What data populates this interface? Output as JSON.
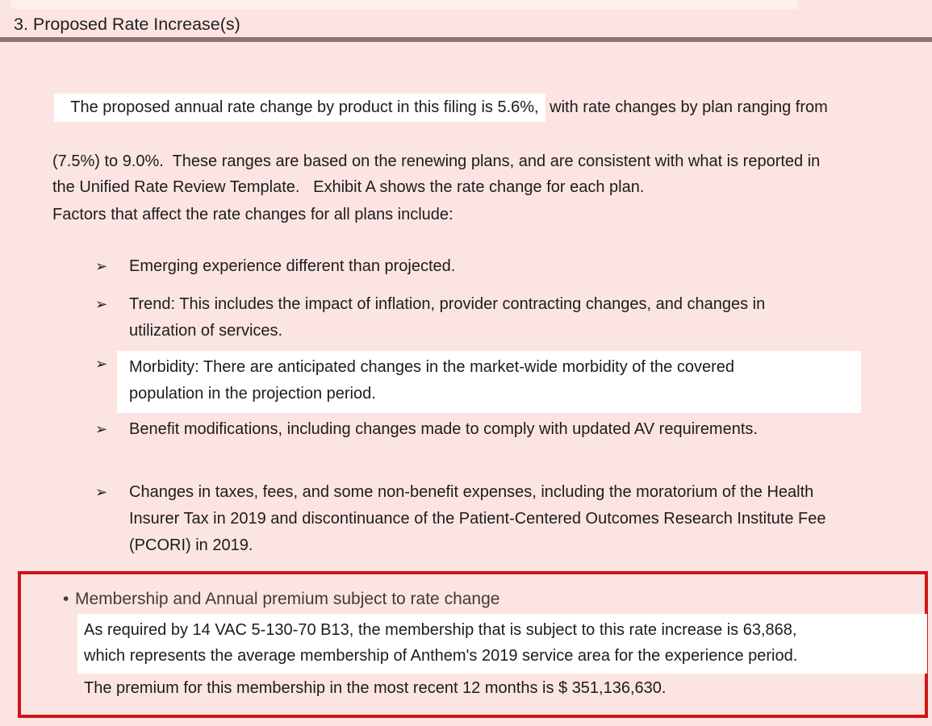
{
  "page": {
    "title": "3. Proposed Rate Increase(s)",
    "colors": {
      "background": "#fce4e2",
      "title_rule": "#8a7575",
      "highlight": "#ffffff",
      "box_border": "#cf1616",
      "text": "#1c1c1c"
    }
  },
  "intro": {
    "line1_highlighted": "The proposed annual rate change by product in this filing is 5.6%,",
    "line1_rest": " with rate changes by plan ranging from",
    "line2": "(7.5%) to 9.0%.  These ranges are based on the renewing plans, and are consistent with what is reported in",
    "line3": "the Unified Rate Review Template.   Exhibit A shows the rate change for each plan."
  },
  "factors": {
    "heading": "Factors that affect the rate changes for all plans include:",
    "bullet_glyph": "➢",
    "items": [
      {
        "lines": [
          "Emerging experience different than projected."
        ]
      },
      {
        "lines": [
          "Trend: This includes the impact of inflation, provider contracting changes, and changes in",
          "utilization of services."
        ]
      },
      {
        "highlighted": true,
        "lines": [
          "Morbidity: There are anticipated changes in the market-wide morbidity of the covered",
          "population in the projection period."
        ]
      },
      {
        "lines": [
          "Benefit modifications, including changes made to comply with updated AV requirements."
        ]
      },
      {
        "lines": [
          "Changes in taxes, fees, and some non-benefit expenses, including the moratorium of the Health",
          "Insurer Tax in 2019 and discontinuance of the Patient-Centered Outcomes Research Institute Fee",
          "(PCORI) in 2019."
        ]
      }
    ]
  },
  "membership_box": {
    "bullet_glyph": "•",
    "heading": "Membership and Annual premium subject to rate change",
    "highlight_lines": [
      "As required by 14 VAC 5-130-70 B13, the membership that is subject to this rate increase is 63,868,",
      "which represents the average membership of Anthem's 2019 service area for the experience period."
    ],
    "closing_line": "The premium for this membership in the most recent 12 months is $ 351,136,630."
  }
}
